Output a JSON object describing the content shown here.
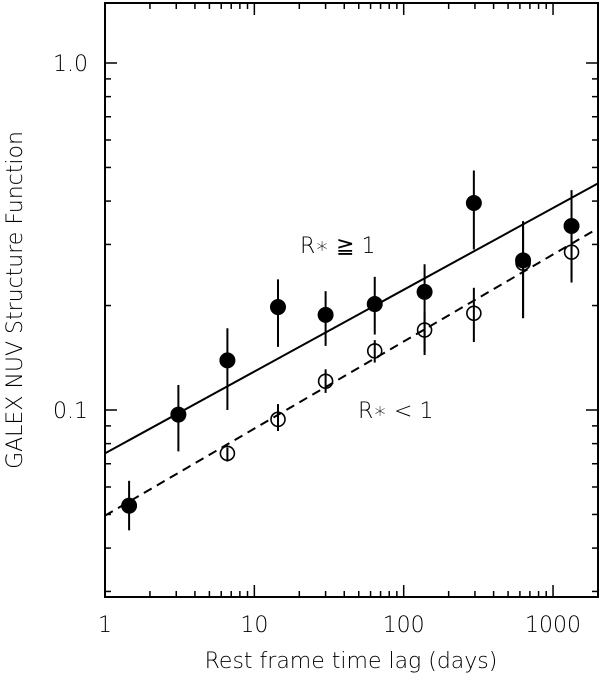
{
  "chart_data": {
    "type": "scatter",
    "title": "",
    "xlabel": "Rest frame time lag (days)",
    "ylabel": "GALEX NUV Structure Function",
    "xscale": "log",
    "yscale": "log",
    "xlim": [
      1,
      2000
    ],
    "ylim": [
      0.029,
      1.5
    ],
    "x_ticks": [
      {
        "value": 1,
        "label": "1"
      },
      {
        "value": 10,
        "label": "10"
      },
      {
        "value": 100,
        "label": "100"
      },
      {
        "value": 1000,
        "label": "1000"
      }
    ],
    "y_ticks": [
      {
        "value": 0.1,
        "label": "0.1"
      },
      {
        "value": 1.0,
        "label": "1.0"
      }
    ],
    "grid": false,
    "series": [
      {
        "name": "R* >= 1",
        "marker": "filled-circle",
        "x": [
          1.45,
          3.1,
          6.6,
          14.4,
          30,
          64,
          138,
          295,
          630,
          1330
        ],
        "y": [
          0.053,
          0.097,
          0.139,
          0.198,
          0.188,
          0.202,
          0.219,
          0.395,
          0.27,
          0.339
        ],
        "y_err_high": [
          0.0625,
          0.118,
          0.172,
          0.238,
          0.22,
          0.242,
          0.263,
          0.49,
          0.35,
          0.43
        ],
        "y_err_low": [
          0.045,
          0.076,
          0.1,
          0.152,
          0.153,
          0.165,
          0.147,
          0.29,
          0.184,
          0.24
        ]
      },
      {
        "name": "R* < 1",
        "marker": "open-circle",
        "x": [
          6.6,
          14.4,
          30,
          64,
          138,
          295,
          630,
          1330
        ],
        "y": [
          0.075,
          0.094,
          0.121,
          0.148,
          0.17,
          0.19,
          0.265,
          0.285
        ],
        "y_err_high": [
          0.078,
          0.104,
          0.131,
          0.159,
          0.192,
          0.225,
          0.35,
          0.345
        ],
        "y_err_low": [
          0.071,
          0.087,
          0.112,
          0.137,
          0.144,
          0.157,
          0.184,
          0.233
        ]
      }
    ],
    "fits": [
      {
        "name": "R* >= 1 fit",
        "style": "solid",
        "x": [
          1,
          2000
        ],
        "y": [
          0.075,
          0.45
        ]
      },
      {
        "name": "R* < 1 fit",
        "style": "dashed",
        "x": [
          1,
          2000
        ],
        "y": [
          0.0496,
          0.334
        ]
      }
    ],
    "annotations": [
      {
        "text": "R∗  ≧  1",
        "x": 14,
        "y": 0.32
      },
      {
        "text": "R∗  <  1",
        "x": 50,
        "y": 0.1
      }
    ]
  }
}
